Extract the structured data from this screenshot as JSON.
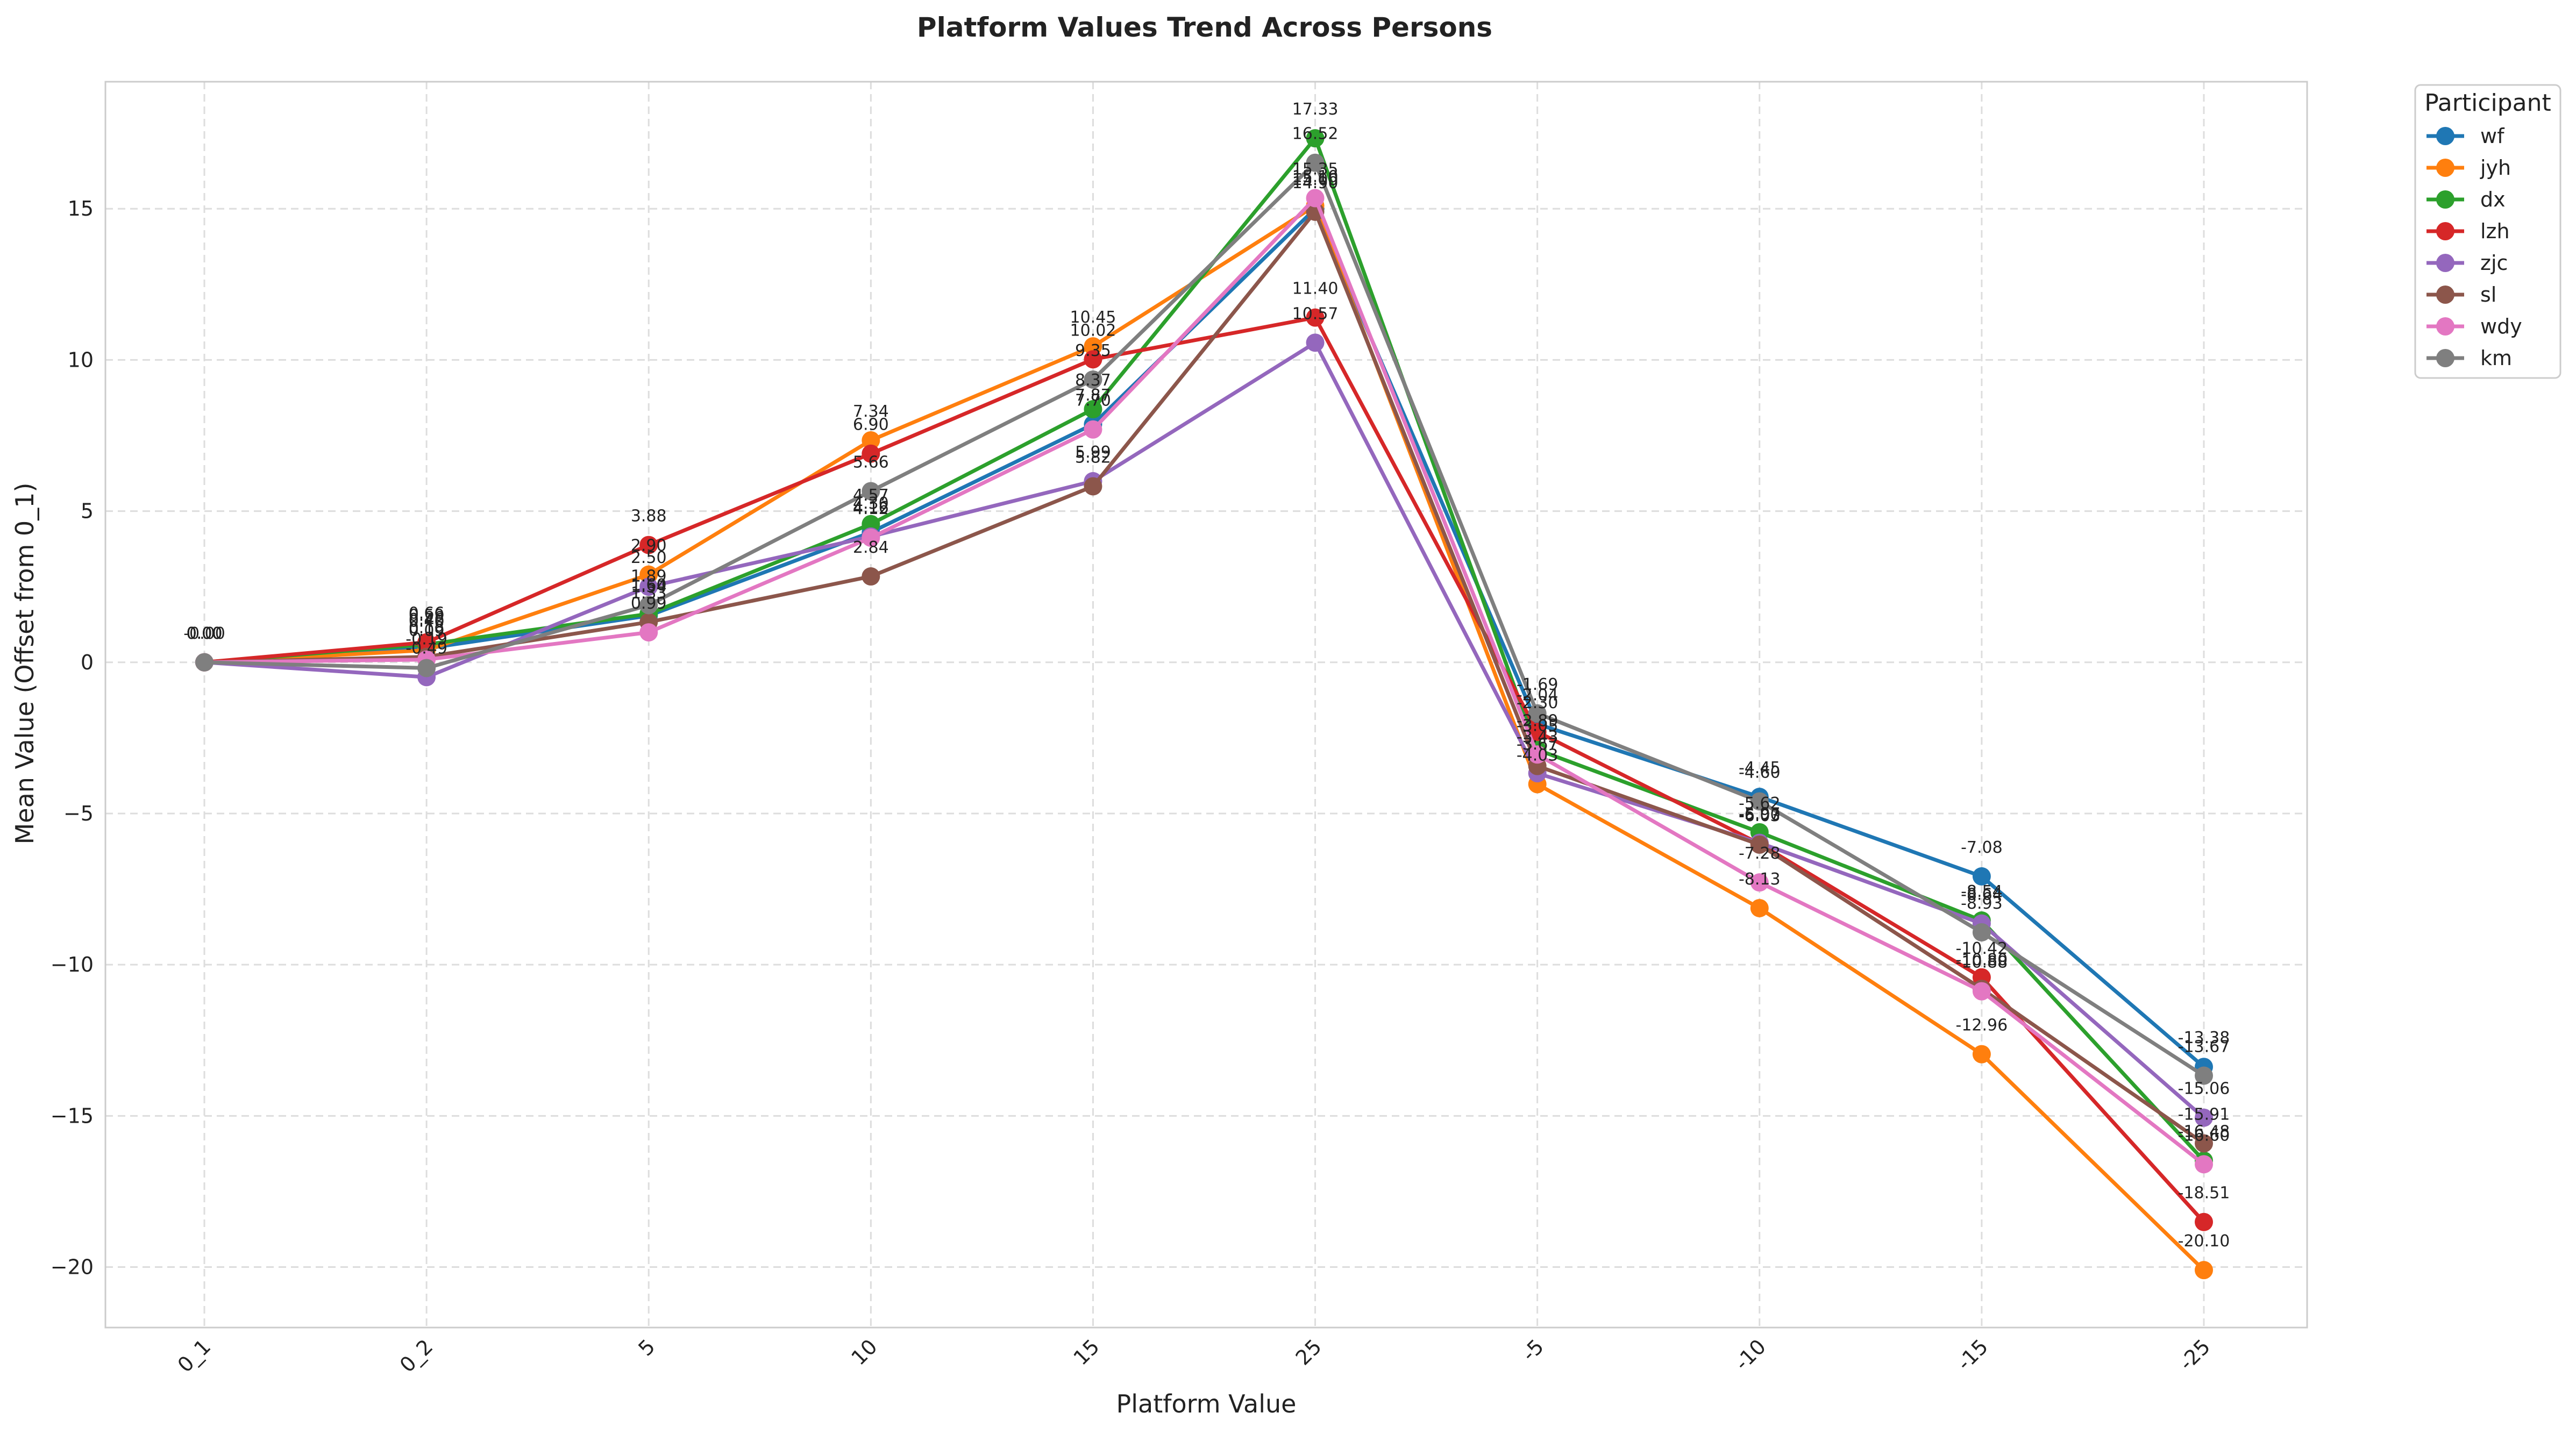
{
  "chart_data": {
    "type": "line",
    "title": "Platform Values Trend Across Persons",
    "xlabel": "Platform Value",
    "ylabel": "Mean Value (Offset from 0_1)",
    "categories": [
      "0_1",
      "0_2",
      "5",
      "10",
      "15",
      "25",
      "-5",
      "-10",
      "-15",
      "-25"
    ],
    "ylim": [
      -22,
      19.2
    ],
    "yticks": [
      -20,
      -15,
      -10,
      -5,
      0,
      5,
      10,
      15
    ],
    "ytick_labels": [
      "−20",
      "−15",
      "−10",
      "−5",
      "0",
      "5",
      "10",
      "15"
    ],
    "grid": true,
    "legend_title": "Participant",
    "legend_position": "outside top-right",
    "series": [
      {
        "name": "wf",
        "color": "#1f77b4",
        "values": [
          0.0,
          0.46,
          1.54,
          4.3,
          7.87,
          15.0,
          -2.04,
          -4.45,
          -7.08,
          -13.38
        ],
        "labels": [
          "0.00",
          "0.46",
          "1.54",
          "4.30",
          "7.87",
          "15.00",
          "-2.04",
          "-4.45",
          "-7.08",
          "-13.38"
        ]
      },
      {
        "name": "jyh",
        "color": "#ff7f0e",
        "values": [
          0.0,
          0.4,
          2.9,
          7.34,
          10.45,
          15.1,
          -4.03,
          -8.13,
          -12.96,
          -20.1
        ],
        "labels": [
          "0.00",
          "0.40",
          "2.90",
          "7.34",
          "10.45",
          "15.10",
          "-4.03",
          "-8.13",
          "-12.96",
          "-20.10"
        ]
      },
      {
        "name": "dx",
        "color": "#2ca02c",
        "values": [
          0.0,
          0.59,
          1.6,
          4.57,
          8.37,
          17.33,
          -2.89,
          -5.62,
          -8.54,
          -16.48
        ],
        "labels": [
          "0.00",
          "0.59",
          "1.60",
          "4.57",
          "8.37",
          "17.33",
          "-2.89",
          "-5.62",
          "-8.54",
          "-16.48"
        ]
      },
      {
        "name": "lzh",
        "color": "#d62728",
        "values": [
          0.0,
          0.66,
          3.88,
          6.9,
          10.02,
          11.4,
          -2.3,
          -6.0,
          -10.42,
          -18.51
        ],
        "labels": [
          "0.00",
          "0.66",
          "3.88",
          "6.90",
          "10.02",
          "11.40",
          "-2.30",
          "-6.00",
          "-10.42",
          "-18.51"
        ]
      },
      {
        "name": "zjc",
        "color": "#9467bd",
        "values": [
          0.0,
          -0.49,
          2.5,
          4.16,
          5.99,
          10.57,
          -3.67,
          -5.97,
          -8.64,
          -15.06
        ],
        "labels": [
          "0.00",
          "-0.49",
          "2.50",
          "4.16",
          "5.99",
          "10.57",
          "-3.67",
          "-5.97",
          "-8.64",
          "-15.06"
        ]
      },
      {
        "name": "sl",
        "color": "#8c564b",
        "values": [
          0.0,
          0.18,
          1.33,
          2.84,
          5.82,
          14.9,
          -3.43,
          -6.03,
          -10.8,
          -15.91
        ],
        "labels": [
          "0.00",
          "0.18",
          "1.33",
          "2.84",
          "5.82",
          "14.90",
          "-3.43",
          "-6.03",
          "-10.80",
          "-15.91"
        ]
      },
      {
        "name": "wdy",
        "color": "#e377c2",
        "values": [
          0.0,
          0.09,
          0.99,
          4.12,
          7.7,
          15.35,
          -3.05,
          -7.28,
          -10.88,
          -16.6
        ],
        "labels": [
          "0.00",
          "0.09",
          "0.99",
          "4.12",
          "7.70",
          "15.35",
          "-3.05",
          "-7.28",
          "-10.88",
          "-16.60"
        ]
      },
      {
        "name": "km",
        "color": "#7f7f7f",
        "values": [
          0.0,
          -0.19,
          1.89,
          5.66,
          9.35,
          16.52,
          -1.69,
          -4.6,
          -8.93,
          -13.67
        ],
        "labels": [
          "-0.00",
          "-0.19",
          "1.89",
          "5.66",
          "9.35",
          "16.52",
          "-1.69",
          "-4.60",
          "-8.93",
          "-13.67"
        ]
      }
    ]
  }
}
